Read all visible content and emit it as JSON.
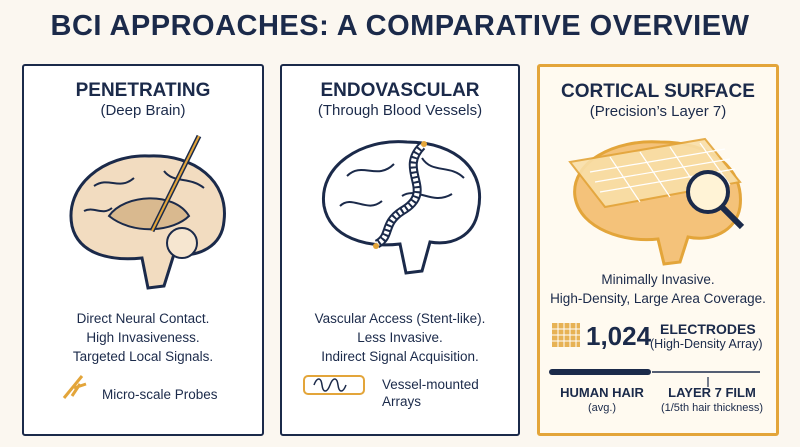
{
  "title": "BCI APPROACHES: A COMPARATIVE OVERVIEW",
  "panels": [
    {
      "title": "PENETRATING",
      "subtitle": "(Deep Brain)",
      "description": [
        "Direct Neural Contact.",
        "High Invasiveness.",
        "Targeted Local Signals."
      ],
      "legend": [
        "Micro-scale Probes"
      ]
    },
    {
      "title": "ENDOVASCULAR",
      "subtitle": "(Through Blood Vessels)",
      "description": [
        "Vascular Access (Stent-like).",
        "Less Invasive.",
        "Indirect Signal Acquisition."
      ],
      "legend": [
        "Vessel-mounted",
        "Arrays"
      ]
    },
    {
      "title": "CORTICAL SURFACE",
      "subtitle": "(Precision’s Layer 7)",
      "description": [
        "Minimally Invasive.",
        "High-Density, Large Area Coverage."
      ],
      "electrodes": {
        "count": "1,024",
        "label": "ELECTRODES",
        "sublabel": "(High-Density Array)"
      },
      "comparison": {
        "left": "HUMAN HAIR",
        "left_note": "(avg.)",
        "right": "LAYER 7 FILM",
        "right_note": "(1/5th hair thickness)"
      }
    }
  ]
}
